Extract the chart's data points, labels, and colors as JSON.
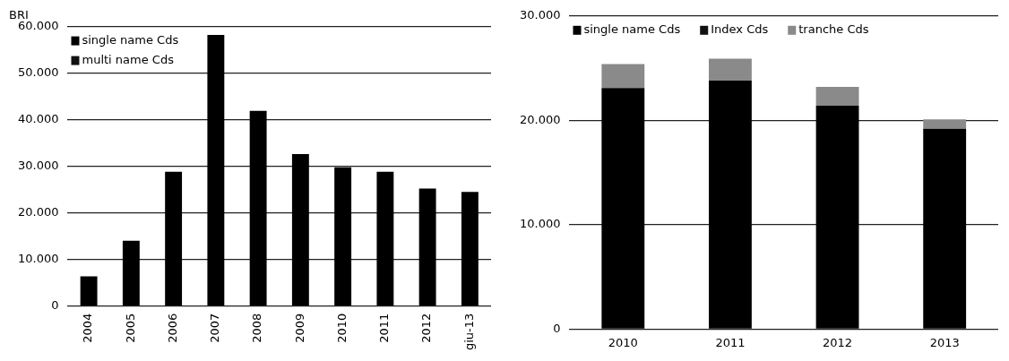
{
  "chart_data": [
    {
      "type": "bar",
      "title": "BRI",
      "stacked": true,
      "grid": "y",
      "legend": "top left",
      "categories": [
        "2004",
        "2005",
        "2006",
        "2007",
        "2008",
        "2009",
        "2010",
        "2011",
        "2012",
        "giu-13"
      ],
      "series": [
        {
          "name": "single name Cds",
          "color": "#000000",
          "values": [
            6400,
            14000,
            28800,
            58200,
            41900,
            32600,
            29800,
            28800,
            25200,
            24500
          ]
        },
        {
          "name": "multi name Cds",
          "color": "#111111",
          "values": [
            null,
            null,
            null,
            null,
            null,
            null,
            null,
            null,
            null,
            null
          ]
        }
      ],
      "ylim": [
        0,
        60000
      ],
      "yticks": [
        {
          "value": 0,
          "label": "0"
        },
        {
          "value": 10000,
          "label": "10.000"
        },
        {
          "value": 20000,
          "label": "20.000"
        },
        {
          "value": 30000,
          "label": "30.000"
        },
        {
          "value": 40000,
          "label": "40.000"
        },
        {
          "value": 50000,
          "label": "50.000"
        },
        {
          "value": 60000,
          "label": "60.000"
        }
      ]
    },
    {
      "type": "bar",
      "stacked": true,
      "grid": "y",
      "legend": "top",
      "categories": [
        "2010",
        "2011",
        "2012",
        "2013"
      ],
      "series": [
        {
          "name": "single name Cds",
          "color": "#000000",
          "values": [
            23100,
            23800,
            21400,
            19200
          ]
        },
        {
          "name": "Index Cds",
          "color": "#111111",
          "values": [
            null,
            null,
            null,
            null
          ]
        },
        {
          "name": "tranche Cds",
          "color": "#8a8a8a",
          "values": [
            2300,
            2100,
            1800,
            900
          ]
        }
      ],
      "ylim": [
        0,
        30000
      ],
      "yticks": [
        {
          "value": 0,
          "label": "0"
        },
        {
          "value": 10000,
          "label": "10.000"
        },
        {
          "value": 20000,
          "label": "20.000"
        },
        {
          "value": 30000,
          "label": "30.000"
        }
      ]
    }
  ]
}
